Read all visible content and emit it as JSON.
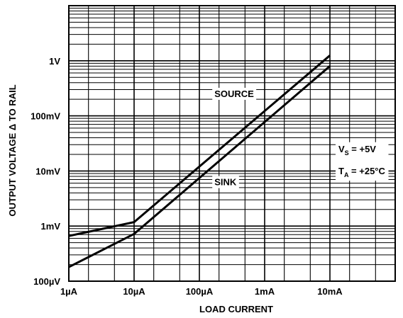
{
  "chart_data": {
    "type": "line",
    "title": "",
    "xlabel": "LOAD CURRENT",
    "ylabel": "OUTPUT VOLTAGE Δ TO RAIL",
    "x_scale": "log",
    "y_scale": "log",
    "xlim": [
      1e-06,
      0.1
    ],
    "ylim": [
      0.0001,
      10
    ],
    "grid": true,
    "x_ticks": [
      {
        "value": 1e-06,
        "label": "1µA"
      },
      {
        "value": 1e-05,
        "label": "10µA"
      },
      {
        "value": 0.0001,
        "label": "100µA"
      },
      {
        "value": 0.001,
        "label": "1mA"
      },
      {
        "value": 0.01,
        "label": "10mA"
      }
    ],
    "y_ticks": [
      {
        "value": 0.0001,
        "label": "100µV"
      },
      {
        "value": 0.001,
        "label": "1mV"
      },
      {
        "value": 0.01,
        "label": "10mV"
      },
      {
        "value": 0.1,
        "label": "100mV"
      },
      {
        "value": 1,
        "label": "1V"
      }
    ],
    "series": [
      {
        "name": "SOURCE",
        "x": [
          1e-06,
          1e-05,
          0.01
        ],
        "y": [
          0.00066,
          0.00118,
          1.25
        ]
      },
      {
        "name": "SINK",
        "x": [
          1e-06,
          1e-05,
          0.01
        ],
        "y": [
          0.00018,
          0.00072,
          0.8
        ]
      }
    ],
    "annotations": [
      {
        "name": "SOURCE",
        "x": 0.00017,
        "y": 0.22
      },
      {
        "name": "SINK",
        "x": 0.00017,
        "y": 0.0055
      }
    ],
    "conditions": {
      "vs": {
        "main": "V",
        "sub": "S",
        "rest": " = +5V"
      },
      "ta": {
        "main": "T",
        "sub": "A",
        "rest": " = +25°C"
      }
    }
  }
}
